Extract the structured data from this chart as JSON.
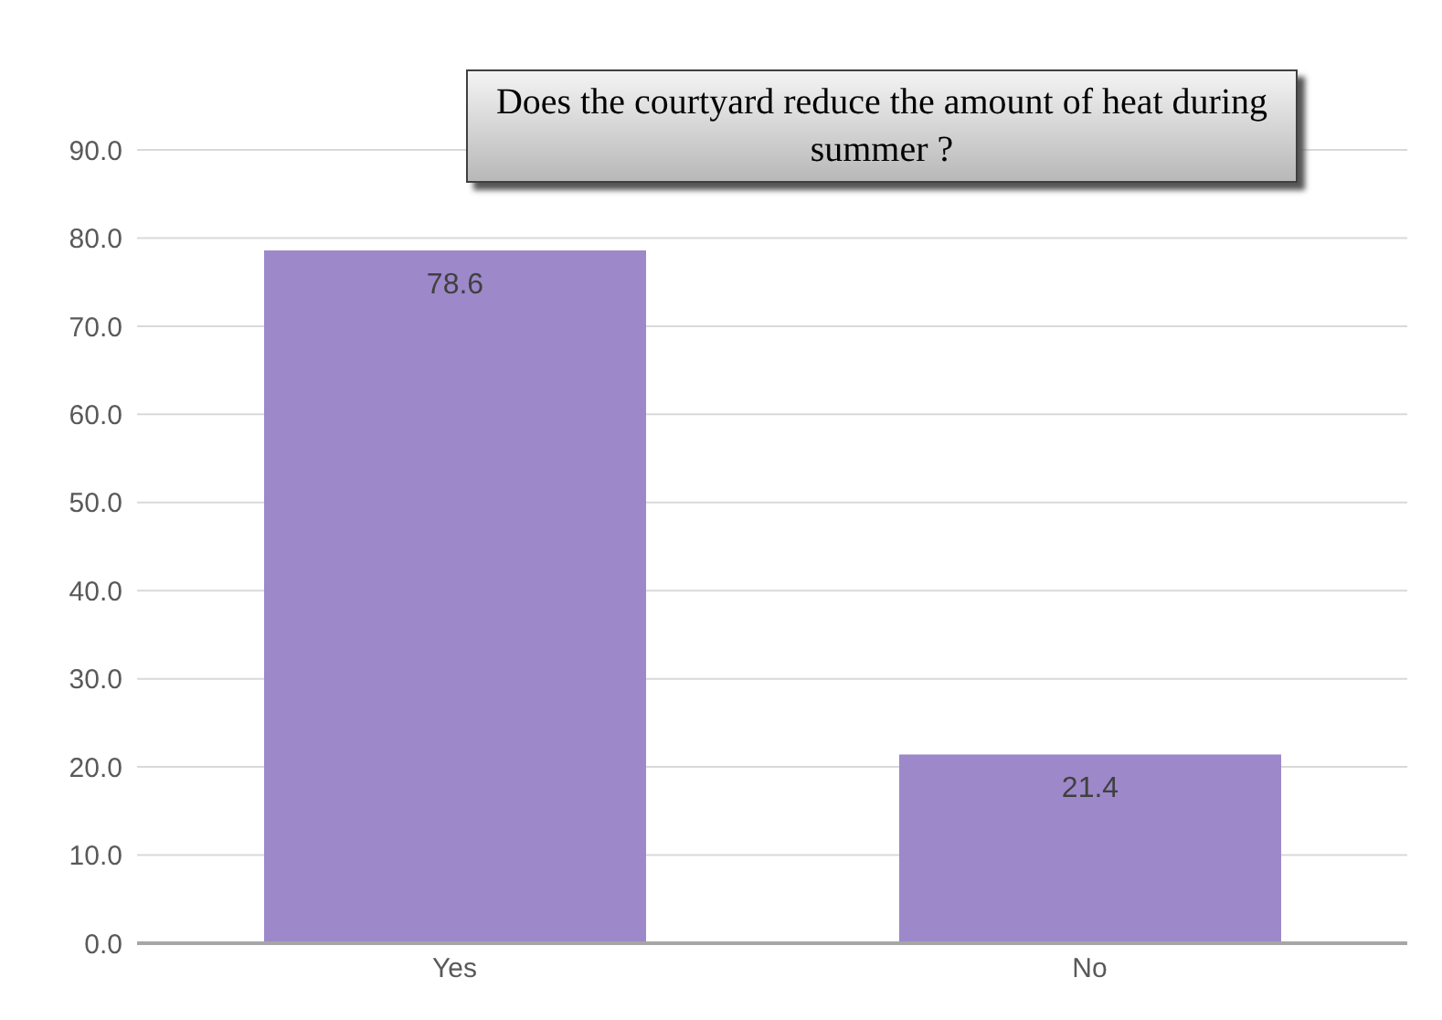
{
  "chart_data": {
    "type": "bar",
    "title": "Does the courtyard reduce the amount of heat during summer ?",
    "categories": [
      "Yes",
      "No"
    ],
    "values": [
      78.6,
      21.4
    ],
    "color": "#9d88c9",
    "ylim": [
      0,
      90
    ],
    "yticks": [
      {
        "value": 0,
        "label": "0.0"
      },
      {
        "value": 10,
        "label": "10.0"
      },
      {
        "value": 20,
        "label": "20.0"
      },
      {
        "value": 30,
        "label": "30.0"
      },
      {
        "value": 40,
        "label": "40.0"
      },
      {
        "value": 50,
        "label": "50.0"
      },
      {
        "value": 60,
        "label": "60.0"
      },
      {
        "value": 70,
        "label": "70.0"
      },
      {
        "value": 80,
        "label": "80.0"
      },
      {
        "value": 90,
        "label": "90.0"
      }
    ],
    "grid": "y",
    "data_labels": true
  }
}
